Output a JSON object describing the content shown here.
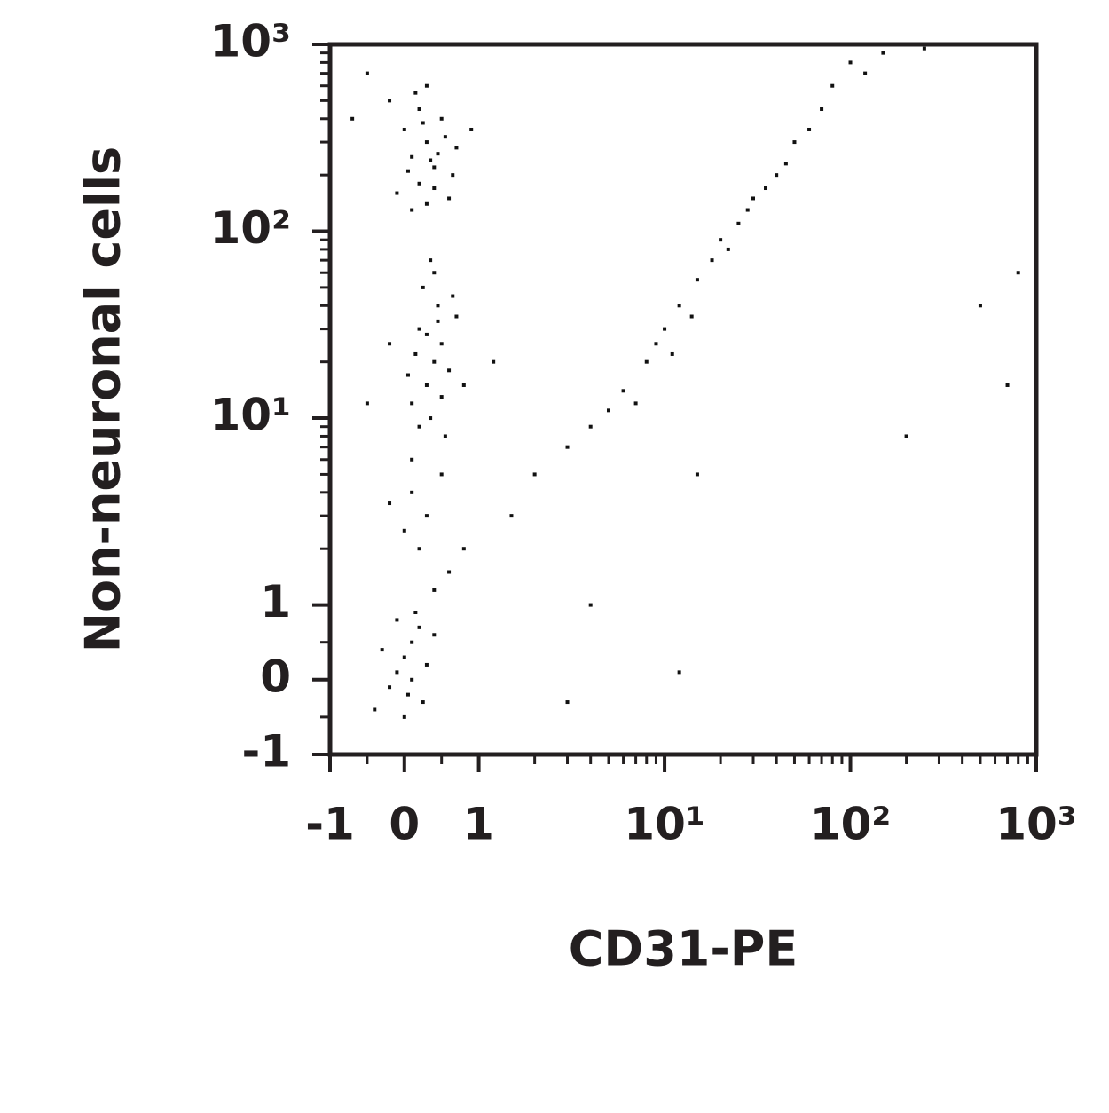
{
  "chart_data": {
    "type": "scatter",
    "xlabel": "CD31-PE",
    "ylabel": "Non-neuronal cells",
    "xscale": "biexponential",
    "yscale": "biexponential",
    "color": "#111111",
    "xlim": [
      -1,
      1000
    ],
    "ylim": [
      -1,
      1000
    ],
    "xticks": [
      -1,
      0,
      1,
      {
        "value": 10,
        "label": "10¹"
      },
      {
        "value": 100,
        "label": "10²"
      },
      {
        "value": 1000,
        "label": "10³"
      }
    ],
    "yticks": [
      -1,
      0,
      1,
      {
        "value": 10,
        "label": "10¹"
      },
      {
        "value": 100,
        "label": "10²"
      },
      {
        "value": 1000,
        "label": "10³"
      }
    ],
    "xminorticks": [
      -0.5,
      0.5,
      2,
      3,
      4,
      5,
      6,
      7,
      8,
      9,
      20,
      30,
      40,
      50,
      60,
      70,
      80,
      90,
      200,
      300,
      400,
      500,
      600,
      700,
      800,
      900
    ],
    "yminorticks": [
      -0.5,
      0.5,
      2,
      3,
      4,
      5,
      6,
      7,
      8,
      9,
      20,
      30,
      40,
      50,
      60,
      70,
      80,
      90,
      200,
      300,
      400,
      500,
      600,
      700,
      800,
      900
    ],
    "x": [
      0.1,
      0.3,
      0.2,
      0.4,
      0.5,
      0,
      -0.2,
      0.6,
      0.3,
      0.1,
      0.7,
      -0.5,
      0.2,
      0.4,
      0.35,
      0.05,
      0.55,
      -0.1,
      0.25,
      0.45,
      0.15,
      0.65,
      0.9,
      -0.7,
      0.3,
      0.4,
      0.3,
      0.5,
      0.2,
      0.6,
      0.1,
      0.45,
      0.35,
      0.25,
      0.55,
      0.15,
      0.7,
      0.05,
      0.5,
      0.3,
      0.4,
      0.2,
      0.65,
      -0.2,
      0.8,
      0.35,
      0.1,
      1.2,
      -0.5,
      0.45,
      0.1,
      0.3,
      0.2,
      0.5,
      0,
      -0.2,
      0.6,
      0.4,
      0.8,
      1.5,
      0,
      0.1,
      -0.1,
      0.05,
      0.2,
      -0.3,
      0.3,
      0,
      -0.2,
      0.15,
      0.4,
      -0.4,
      0.1,
      0.25,
      -0.1,
      2,
      3,
      4,
      5,
      6,
      8,
      10,
      12,
      15,
      18,
      20,
      25,
      30,
      40,
      50,
      60,
      80,
      100,
      150,
      250,
      9,
      14,
      22,
      35,
      70,
      7,
      11,
      28,
      45,
      120,
      800,
      500,
      200,
      15,
      12,
      3,
      700,
      4
    ],
    "values": [
      250,
      300,
      180,
      220,
      400,
      350,
      500,
      150,
      600,
      130,
      280,
      700,
      450,
      170,
      240,
      210,
      320,
      160,
      380,
      260,
      550,
      200,
      350,
      400,
      140,
      20,
      15,
      25,
      30,
      18,
      12,
      40,
      10,
      50,
      8,
      22,
      35,
      17,
      13,
      28,
      60,
      9,
      45,
      25,
      15,
      70,
      6,
      20,
      12,
      33,
      4,
      3,
      2,
      5,
      2.5,
      3.5,
      1.5,
      1.2,
      2,
      3,
      0.3,
      0.5,
      0.1,
      -0.2,
      0.7,
      0.4,
      0.2,
      -0.5,
      -0.1,
      0.9,
      0.6,
      -0.4,
      0,
      -0.3,
      0.8,
      5,
      7,
      9,
      11,
      14,
      20,
      30,
      40,
      55,
      70,
      90,
      110,
      150,
      200,
      300,
      350,
      600,
      800,
      900,
      950,
      25,
      35,
      80,
      170,
      450,
      12,
      22,
      130,
      230,
      700,
      60,
      40,
      8,
      5,
      0.1,
      -0.3,
      15,
      1
    ]
  }
}
